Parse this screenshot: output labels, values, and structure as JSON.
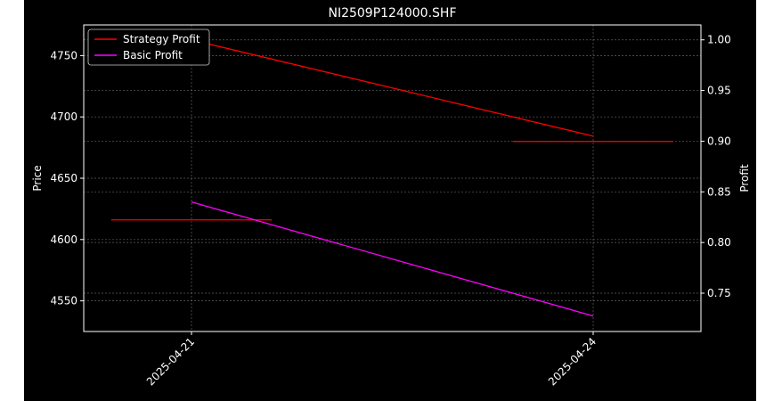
{
  "chart_data": {
    "type": "line",
    "title": "NI2509P124000.SHF",
    "x_ticks": [
      "2025-04-21",
      "2025-04-24"
    ],
    "left_axis": {
      "label": "Price",
      "ylim": [
        4525,
        4775
      ],
      "ticks": [
        4550,
        4600,
        4650,
        4700,
        4750
      ]
    },
    "right_axis": {
      "label": "Profit",
      "ylim": [
        0.7122,
        1.0147
      ],
      "ticks": [
        "0.75",
        "0.80",
        "0.85",
        "0.90",
        "0.95",
        "1.00"
      ]
    },
    "series": [
      {
        "name": "Strategy Profit",
        "color": "#ff0000",
        "axis": "right",
        "points": [
          {
            "x": "2025-04-21",
            "y": 1.0
          },
          {
            "x": "2025-04-24",
            "y": 0.905
          }
        ]
      },
      {
        "name": "Basic Profit",
        "color": "#ff00ff",
        "axis": "right",
        "points": [
          {
            "x": "2025-04-21",
            "y": 0.84
          },
          {
            "x": "2025-04-24",
            "y": 0.7275
          }
        ]
      }
    ],
    "price_markers": [
      {
        "x": "2025-04-21",
        "price": 4616,
        "color": "#ff0000"
      },
      {
        "x": "2025-04-24",
        "price": 4680,
        "color": "#ff0000"
      }
    ],
    "grid": true,
    "legend_position": "top-left"
  }
}
